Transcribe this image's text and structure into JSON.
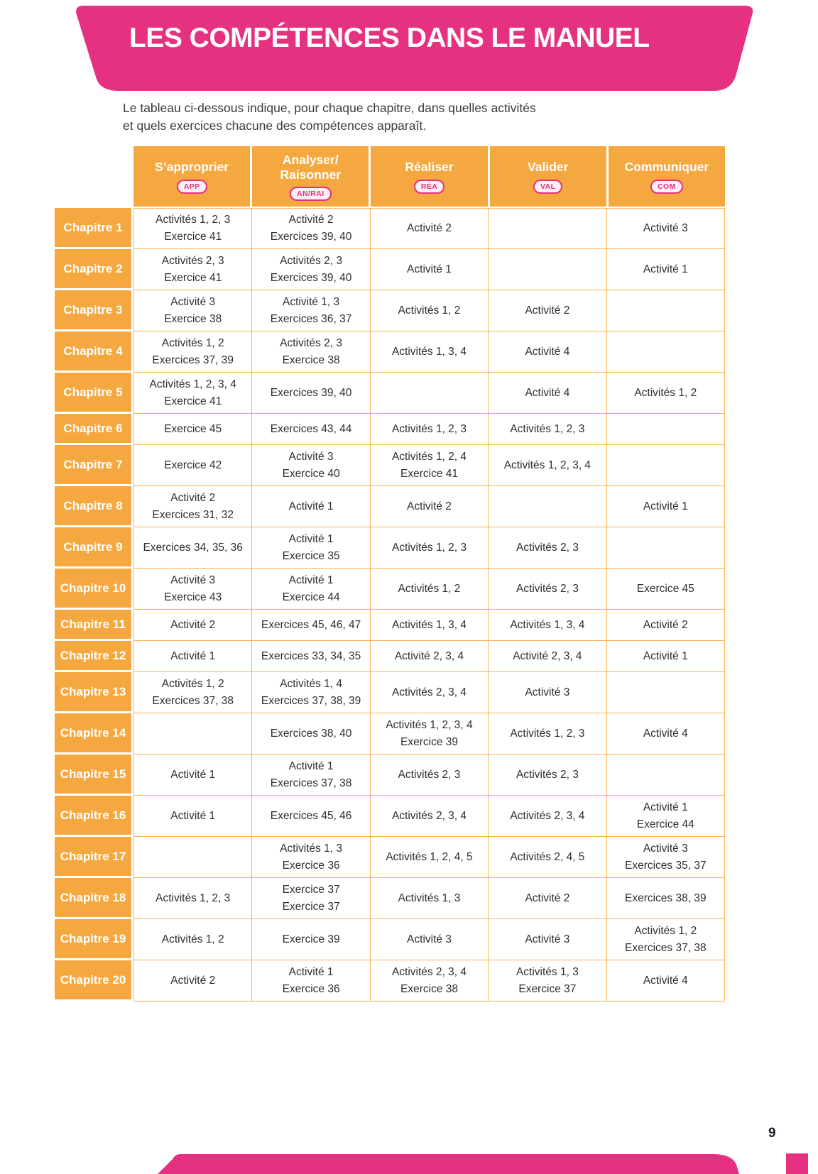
{
  "page": {
    "title": "LES COMPÉTENCES DANS LE MANUEL",
    "intro_line1": "Le tableau ci-dessous indique, pour chaque chapitre, dans quelles activités",
    "intro_line2": "et quels exercices chacune des compétences apparaît.",
    "page_number": "9"
  },
  "colors": {
    "pink": "#E5317F",
    "orange": "#F5A83F",
    "orange_border": "#F8B452",
    "cell_text": "#2E2E2E",
    "badge_bg": "#FDEFF6"
  },
  "table": {
    "columns": [
      {
        "label": "S’approprier",
        "badge": "APP"
      },
      {
        "label": "Analyser/\nRaisonner",
        "badge": "AN/RAI"
      },
      {
        "label": "Réaliser",
        "badge": "RÉA"
      },
      {
        "label": "Valider",
        "badge": "VAL"
      },
      {
        "label": "Communiquer",
        "badge": "COM"
      }
    ],
    "rows": [
      {
        "label": "Chapitre 1",
        "cells": [
          [
            "Activités 1, 2, 3",
            "Exercice 41"
          ],
          [
            "Activité 2",
            "Exercices 39, 40"
          ],
          [
            "Activité 2"
          ],
          [],
          [
            "Activité 3"
          ]
        ]
      },
      {
        "label": "Chapitre 2",
        "cells": [
          [
            "Activités 2, 3",
            "Exercice 41"
          ],
          [
            "Activités 2, 3",
            "Exercices 39, 40"
          ],
          [
            "Activité 1"
          ],
          [],
          [
            "Activité 1"
          ]
        ]
      },
      {
        "label": "Chapitre 3",
        "cells": [
          [
            "Activité 3",
            "Exercice 38"
          ],
          [
            "Activité 1, 3",
            "Exercices 36, 37"
          ],
          [
            "Activités 1, 2"
          ],
          [
            "Activité 2"
          ],
          []
        ]
      },
      {
        "label": "Chapitre 4",
        "cells": [
          [
            "Activités 1, 2",
            "Exercices 37, 39"
          ],
          [
            "Activités 2, 3",
            "Exercice 38"
          ],
          [
            "Activités 1, 3, 4"
          ],
          [
            "Activité 4"
          ],
          []
        ]
      },
      {
        "label": "Chapitre 5",
        "cells": [
          [
            "Activités 1, 2, 3, 4",
            "Exercice 41"
          ],
          [
            "Exercices 39, 40"
          ],
          [],
          [
            "Activité 4"
          ],
          [
            "Activités 1, 2"
          ]
        ]
      },
      {
        "label": "Chapitre 6",
        "cells": [
          [
            "Exercice 45"
          ],
          [
            "Exercices 43, 44"
          ],
          [
            "Activités 1, 2, 3"
          ],
          [
            "Activités 1, 2, 3"
          ],
          []
        ]
      },
      {
        "label": "Chapitre 7",
        "cells": [
          [
            "Exercice 42"
          ],
          [
            "Activité 3",
            "Exercice 40"
          ],
          [
            "Activités 1, 2, 4",
            "Exercice 41"
          ],
          [
            "Activités 1, 2, 3, 4"
          ],
          []
        ]
      },
      {
        "label": "Chapitre 8",
        "cells": [
          [
            "Activité 2",
            "Exercices 31, 32"
          ],
          [
            "Activité 1"
          ],
          [
            "Activité 2"
          ],
          [],
          [
            "Activité 1"
          ]
        ]
      },
      {
        "label": "Chapitre 9",
        "cells": [
          [
            "Exercices 34, 35, 36"
          ],
          [
            "Activité 1",
            "Exercice 35"
          ],
          [
            "Activités 1, 2, 3"
          ],
          [
            "Activités 2, 3"
          ],
          []
        ]
      },
      {
        "label": "Chapitre 10",
        "cells": [
          [
            "Activité 3",
            "Exercice 43"
          ],
          [
            "Activité 1",
            "Exercice 44"
          ],
          [
            "Activités 1, 2"
          ],
          [
            "Activités 2, 3"
          ],
          [
            "Exercice 45"
          ]
        ]
      },
      {
        "label": "Chapitre 11",
        "cells": [
          [
            "Activité 2"
          ],
          [
            "Exercices 45, 46, 47"
          ],
          [
            "Activités 1, 3, 4"
          ],
          [
            "Activités 1, 3, 4"
          ],
          [
            "Activité 2"
          ]
        ]
      },
      {
        "label": "Chapitre 12",
        "cells": [
          [
            "Activité 1"
          ],
          [
            "Exercices 33, 34, 35"
          ],
          [
            "Activité 2, 3, 4"
          ],
          [
            "Activité 2, 3, 4"
          ],
          [
            "Activité 1"
          ]
        ]
      },
      {
        "label": "Chapitre 13",
        "cells": [
          [
            "Activités 1, 2",
            "Exercices 37, 38"
          ],
          [
            "Activités 1, 4",
            "Exercices 37, 38, 39"
          ],
          [
            "Activités 2, 3, 4"
          ],
          [
            "Activité 3"
          ],
          []
        ]
      },
      {
        "label": "Chapitre 14",
        "cells": [
          [],
          [
            "Exercices 38, 40"
          ],
          [
            "Activités 1, 2, 3, 4",
            "Exercice 39"
          ],
          [
            "Activités 1, 2, 3"
          ],
          [
            "Activité 4"
          ]
        ]
      },
      {
        "label": "Chapitre 15",
        "cells": [
          [
            "Activité 1"
          ],
          [
            "Activité 1",
            "Exercices 37, 38"
          ],
          [
            "Activités 2, 3"
          ],
          [
            "Activités 2, 3"
          ],
          []
        ]
      },
      {
        "label": "Chapitre 16",
        "cells": [
          [
            "Activité 1"
          ],
          [
            "Exercices 45, 46"
          ],
          [
            "Activités 2, 3, 4"
          ],
          [
            "Activités 2, 3, 4"
          ],
          [
            "Activité 1",
            "Exercice 44"
          ]
        ]
      },
      {
        "label": "Chapitre 17",
        "cells": [
          [],
          [
            "Activités 1, 3",
            "Exercice 36"
          ],
          [
            "Activités 1, 2, 4, 5"
          ],
          [
            "Activités 2, 4, 5"
          ],
          [
            "Activité 3",
            "Exercices 35, 37"
          ]
        ]
      },
      {
        "label": "Chapitre 18",
        "cells": [
          [
            "Activités 1, 2, 3"
          ],
          [
            "Exercice 37",
            "Exercice 37"
          ],
          [
            "Activités 1, 3"
          ],
          [
            "Activité 2"
          ],
          [
            "Exercices 38, 39"
          ]
        ]
      },
      {
        "label": "Chapitre 19",
        "cells": [
          [
            "Activités 1, 2"
          ],
          [
            "Exercice 39"
          ],
          [
            "Activité 3"
          ],
          [
            "Activité 3"
          ],
          [
            "Activités 1, 2",
            "Exercices 37, 38"
          ]
        ]
      },
      {
        "label": "Chapitre 20",
        "cells": [
          [
            "Activité 2"
          ],
          [
            "Activité 1",
            "Exercice 36"
          ],
          [
            "Activités 2, 3, 4",
            "Exercice 38"
          ],
          [
            "Activités 1, 3",
            "Exercice 37"
          ],
          [
            "Activité 4"
          ]
        ]
      }
    ]
  }
}
